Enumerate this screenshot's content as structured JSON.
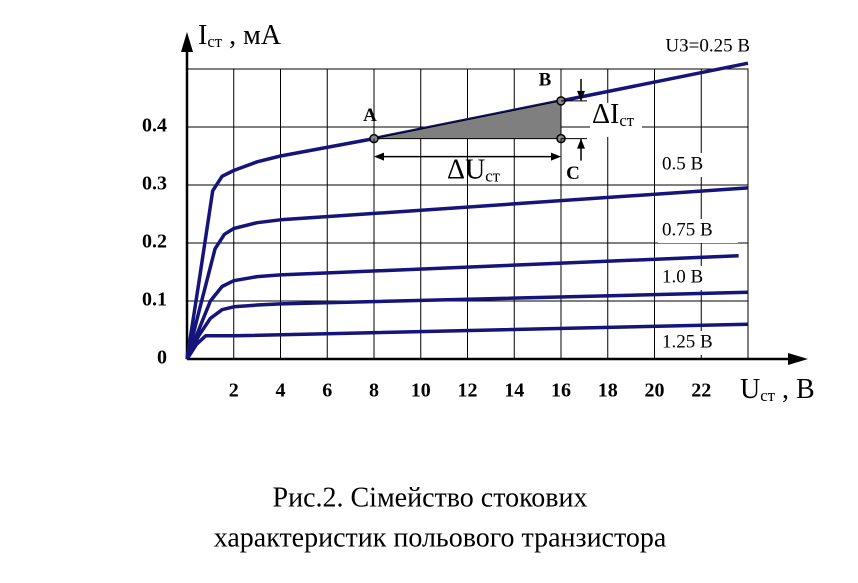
{
  "chart_data": {
    "type": "line",
    "y_label": {
      "symbol": "I",
      "sub": "ст",
      "unit": " , мА"
    },
    "x_label": {
      "symbol": "U",
      "sub": "ст",
      "unit": " , В"
    },
    "xlim": [
      0,
      24
    ],
    "ylim": [
      0,
      0.5
    ],
    "xticks": [
      2,
      4,
      6,
      8,
      10,
      12,
      14,
      16,
      18,
      20,
      22
    ],
    "yticks": [
      0,
      0.1,
      0.2,
      0.3,
      0.4
    ],
    "grid": true,
    "series": [
      {
        "name": "UЗ=0.25 В",
        "color": "#14147a",
        "x": [
          0,
          0.5,
          1.1,
          1.5,
          2,
          3,
          4,
          8,
          16,
          24
        ],
        "values": [
          0,
          0.13,
          0.29,
          0.315,
          0.325,
          0.34,
          0.35,
          0.38,
          0.445,
          0.51
        ]
      },
      {
        "name": "0.5 В",
        "color": "#14147a",
        "x": [
          0,
          0.5,
          1.2,
          1.6,
          2,
          3,
          4,
          24
        ],
        "values": [
          0,
          0.08,
          0.19,
          0.215,
          0.225,
          0.235,
          0.24,
          0.295
        ]
      },
      {
        "name": "0.75 В",
        "color": "#14147a",
        "x": [
          0,
          0.5,
          1,
          1.5,
          2,
          3,
          4,
          23.6
        ],
        "values": [
          0,
          0.05,
          0.1,
          0.125,
          0.135,
          0.142,
          0.145,
          0.178
        ]
      },
      {
        "name": "1.0 В",
        "color": "#14147a",
        "x": [
          0,
          0.5,
          1,
          1.5,
          2,
          3,
          4,
          24
        ],
        "values": [
          0,
          0.04,
          0.07,
          0.085,
          0.09,
          0.093,
          0.095,
          0.115
        ]
      },
      {
        "name": "1.25 В",
        "color": "#14147a",
        "x": [
          0,
          0.4,
          0.8,
          2,
          24
        ],
        "values": [
          0,
          0.025,
          0.04,
          0.04,
          0.06
        ]
      }
    ],
    "points": [
      {
        "label": "A",
        "x": 8,
        "y": 0.38
      },
      {
        "label": "B",
        "x": 16,
        "y": 0.445
      },
      {
        "label": "C",
        "x": 16,
        "y": 0.38
      }
    ],
    "delta_u": {
      "symbol": "ΔU",
      "sub": "ст"
    },
    "delta_i": {
      "symbol": "ΔI",
      "sub": "ст"
    },
    "y_zero_label": "0"
  },
  "caption": [
    "Рис.2. Сімейство стокових",
    "характеристик польового транзистора"
  ]
}
